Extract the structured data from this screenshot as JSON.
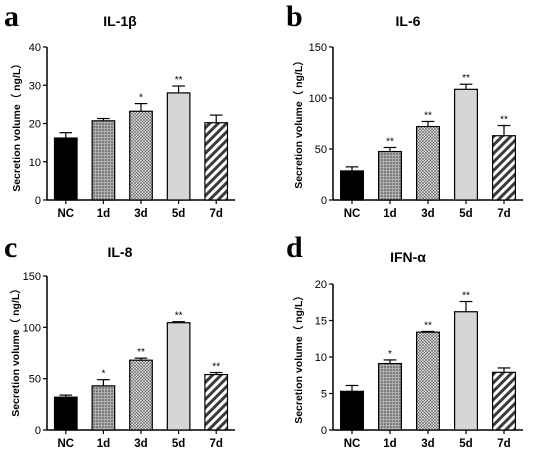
{
  "chart_data": [
    {
      "panel": "a",
      "type": "bar",
      "title": "IL-1β",
      "ylabel": "Secretion volume（ ng/L）",
      "xlabel": "",
      "categories": [
        "NC",
        "1d",
        "3d",
        "5d",
        "7d"
      ],
      "values": [
        16.2,
        20.7,
        23.2,
        28.0,
        20.2
      ],
      "errors": [
        1.4,
        0.6,
        2.0,
        1.8,
        2.0
      ],
      "significance": [
        "",
        "",
        "*",
        "**",
        ""
      ],
      "ylim": [
        0,
        40
      ],
      "yticks": [
        0,
        10,
        20,
        30,
        40
      ],
      "grid": false,
      "bar_fills": [
        "black",
        "dots",
        "crosshatch",
        "light-gray",
        "diagonal-stripes"
      ]
    },
    {
      "panel": "b",
      "type": "bar",
      "title": "IL-6",
      "ylabel": "Secretion volume（ ng/L）",
      "xlabel": "",
      "categories": [
        "NC",
        "1d",
        "3d",
        "5d",
        "7d"
      ],
      "values": [
        28.5,
        47.5,
        72.0,
        108.5,
        63.0
      ],
      "errors": [
        4.0,
        4.0,
        5.0,
        5.0,
        10.0
      ],
      "significance": [
        "",
        "**",
        "**",
        "**",
        "**"
      ],
      "ylim": [
        0,
        150
      ],
      "yticks": [
        0,
        50,
        100,
        150
      ],
      "grid": false,
      "bar_fills": [
        "black",
        "dots",
        "crosshatch",
        "light-gray",
        "diagonal-stripes"
      ]
    },
    {
      "panel": "c",
      "type": "bar",
      "title": "IL-8",
      "ylabel": "Secretion volume（ ng/L）",
      "xlabel": "",
      "categories": [
        "NC",
        "1d",
        "3d",
        "5d",
        "7d"
      ],
      "values": [
        32.0,
        43.0,
        68.0,
        104.5,
        54.0
      ],
      "errors": [
        2.0,
        6.0,
        2.0,
        1.0,
        2.0
      ],
      "significance": [
        "",
        "*",
        "**",
        "**",
        "**"
      ],
      "ylim": [
        0,
        150
      ],
      "yticks": [
        0,
        50,
        100,
        150
      ],
      "grid": false,
      "bar_fills": [
        "black",
        "dots",
        "crosshatch",
        "light-gray",
        "diagonal-stripes"
      ]
    },
    {
      "panel": "d",
      "type": "bar",
      "title": "IFN-α",
      "ylabel": "Secretion volume（ ng/L）",
      "xlabel": "",
      "categories": [
        "NC",
        "1d",
        "3d",
        "5d",
        "7d"
      ],
      "values": [
        5.3,
        9.1,
        13.4,
        16.2,
        7.9
      ],
      "errors": [
        0.8,
        0.5,
        0.1,
        1.4,
        0.6
      ],
      "significance": [
        "",
        "*",
        "**",
        "**",
        ""
      ],
      "ylim": [
        0,
        20
      ],
      "yticks": [
        0,
        5,
        10,
        15,
        20
      ],
      "grid": false,
      "bar_fills": [
        "black",
        "dots",
        "crosshatch",
        "light-gray",
        "diagonal-stripes"
      ]
    }
  ],
  "colors": {
    "nc_fill": "#000000",
    "dots_bg": "#b0b0b0",
    "dots_fg": "#3a3a3a",
    "crosshatch_bg": "#ececec",
    "crosshatch_fg": "#555555",
    "light_fill": "#d6d6d6",
    "stripe_bg": "#ffffff",
    "stripe_fg": "#3a3a3a"
  }
}
